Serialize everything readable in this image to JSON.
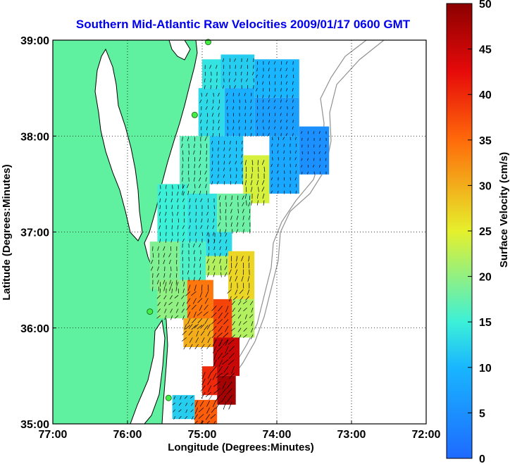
{
  "chart_data": {
    "type": "heatmap",
    "title": "Southern Mid-Atlantic Raw Velocities 2009/01/17 0600 GMT",
    "xlabel": "Longitude (Degrees:Minutes)",
    "ylabel": "Latitude (Degrees:Minutes)",
    "colorbar_label": "Surface Velocity (cm/s)",
    "xlim": [
      -77,
      -72
    ],
    "ylim": [
      35,
      39
    ],
    "x_ticks": [
      {
        "value": -77,
        "label": "77:00"
      },
      {
        "value": -76,
        "label": "76:00"
      },
      {
        "value": -75,
        "label": "75:00"
      },
      {
        "value": -74,
        "label": "74:00"
      },
      {
        "value": -73,
        "label": "73:00"
      },
      {
        "value": -72,
        "label": "72:00"
      }
    ],
    "y_ticks": [
      {
        "value": 35,
        "label": "35:00"
      },
      {
        "value": 36,
        "label": "36:00"
      },
      {
        "value": 37,
        "label": "37:00"
      },
      {
        "value": 38,
        "label": "38:00"
      },
      {
        "value": 39,
        "label": "39:00"
      }
    ],
    "colorbar_range": [
      0,
      50
    ],
    "colorbar_ticks": [
      0,
      5,
      10,
      15,
      20,
      25,
      30,
      35,
      40,
      45,
      50
    ],
    "grid": "dotted",
    "land_color": "#5ff0a0",
    "coastline_color": "#000000",
    "bathymetry_color": "#909090",
    "radar_sites": [
      {
        "lon": -74.92,
        "lat": 38.98
      },
      {
        "lon": -75.1,
        "lat": 38.22
      },
      {
        "lon": -75.7,
        "lat": 36.17
      },
      {
        "lon": -75.45,
        "lat": 35.27
      }
    ],
    "velocity_regions": [
      {
        "lon": [
          -75.0,
          -74.75
        ],
        "lat": [
          38.5,
          38.8
        ],
        "speed": 14
      },
      {
        "lon": [
          -74.75,
          -74.3
        ],
        "lat": [
          38.5,
          38.85
        ],
        "speed": 12
      },
      {
        "lon": [
          -74.3,
          -73.7
        ],
        "lat": [
          38.4,
          38.8
        ],
        "speed": 10
      },
      {
        "lon": [
          -75.05,
          -74.7
        ],
        "lat": [
          38.0,
          38.5
        ],
        "speed": 13
      },
      {
        "lon": [
          -74.7,
          -74.3
        ],
        "lat": [
          38.0,
          38.5
        ],
        "speed": 9
      },
      {
        "lon": [
          -74.3,
          -73.7
        ],
        "lat": [
          38.0,
          38.4
        ],
        "speed": 7
      },
      {
        "lon": [
          -73.7,
          -73.3
        ],
        "lat": [
          37.6,
          38.1
        ],
        "speed": 5
      },
      {
        "lon": [
          -75.3,
          -74.9
        ],
        "lat": [
          37.4,
          38.0
        ],
        "speed": 17
      },
      {
        "lon": [
          -74.9,
          -74.45
        ],
        "lat": [
          37.5,
          38.0
        ],
        "speed": 11
      },
      {
        "lon": [
          -74.45,
          -74.1
        ],
        "lat": [
          37.3,
          37.8
        ],
        "speed": 24
      },
      {
        "lon": [
          -74.1,
          -73.7
        ],
        "lat": [
          37.4,
          38.0
        ],
        "speed": 8
      },
      {
        "lon": [
          -75.6,
          -75.2
        ],
        "lat": [
          36.9,
          37.5
        ],
        "speed": 15
      },
      {
        "lon": [
          -75.2,
          -74.8
        ],
        "lat": [
          36.9,
          37.4
        ],
        "speed": 14
      },
      {
        "lon": [
          -74.8,
          -74.35
        ],
        "lat": [
          37.0,
          37.4
        ],
        "speed": 18
      },
      {
        "lon": [
          -75.7,
          -75.3
        ],
        "lat": [
          36.4,
          36.9
        ],
        "speed": 19
      },
      {
        "lon": [
          -75.3,
          -74.95
        ],
        "lat": [
          36.5,
          36.9
        ],
        "speed": 16
      },
      {
        "lon": [
          -74.95,
          -74.6
        ],
        "lat": [
          36.75,
          37.0
        ],
        "speed": 13
      },
      {
        "lon": [
          -74.95,
          -74.65
        ],
        "lat": [
          36.55,
          36.75
        ],
        "speed": 22
      },
      {
        "lon": [
          -74.65,
          -74.3
        ],
        "lat": [
          36.3,
          36.8
        ],
        "speed": 27
      },
      {
        "lon": [
          -75.6,
          -75.2
        ],
        "lat": [
          36.1,
          36.5
        ],
        "speed": 20
      },
      {
        "lon": [
          -75.2,
          -74.85
        ],
        "lat": [
          36.0,
          36.5
        ],
        "speed": 34
      },
      {
        "lon": [
          -74.85,
          -74.6
        ],
        "lat": [
          35.85,
          36.3
        ],
        "speed": 38
      },
      {
        "lon": [
          -74.6,
          -74.3
        ],
        "lat": [
          35.9,
          36.3
        ],
        "speed": 22
      },
      {
        "lon": [
          -75.25,
          -74.85
        ],
        "lat": [
          35.8,
          36.1
        ],
        "speed": 30
      },
      {
        "lon": [
          -74.85,
          -74.5
        ],
        "lat": [
          35.5,
          35.9
        ],
        "speed": 45
      },
      {
        "lon": [
          -75.0,
          -74.8
        ],
        "lat": [
          35.3,
          35.6
        ],
        "speed": 40
      },
      {
        "lon": [
          -74.8,
          -74.55
        ],
        "lat": [
          35.2,
          35.5
        ],
        "speed": 48
      },
      {
        "lon": [
          -75.4,
          -75.1
        ],
        "lat": [
          35.05,
          35.3
        ],
        "speed": 12
      },
      {
        "lon": [
          -75.1,
          -74.8
        ],
        "lat": [
          35.0,
          35.25
        ],
        "speed": 36
      }
    ]
  }
}
